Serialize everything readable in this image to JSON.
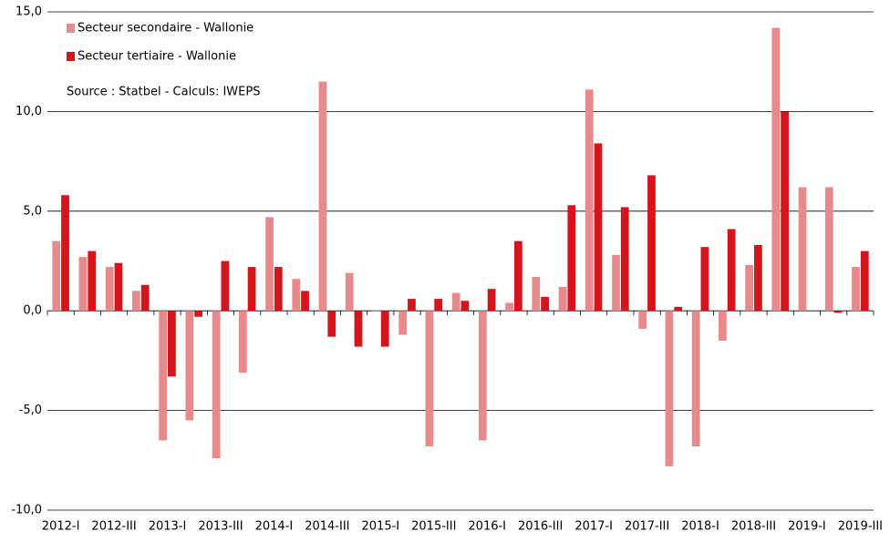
{
  "chart_data": {
    "type": "bar",
    "annotation": "Source : Statbel - Calculs: IWEPS",
    "categories": [
      "2012-I",
      null,
      "2012-III",
      null,
      "2013-I",
      null,
      "2013-III",
      null,
      "2014-I",
      null,
      "2014-III",
      null,
      "2015-I",
      null,
      "2015-III",
      null,
      "2016-I",
      null,
      "2016-III",
      null,
      "2017-I",
      null,
      "2017-III",
      null,
      "2018-I",
      null,
      "2018-III",
      null,
      "2019-I",
      null,
      "2019-III"
    ],
    "series": [
      {
        "name": "Secteur secondaire - Wallonie",
        "color": "#e8898c",
        "values": [
          3.5,
          2.7,
          2.2,
          1.0,
          -6.5,
          -5.5,
          -7.4,
          -3.1,
          4.7,
          1.6,
          11.5,
          1.9,
          0.0,
          -1.2,
          -6.8,
          0.9,
          -6.5,
          0.4,
          1.7,
          1.2,
          11.1,
          2.8,
          -0.9,
          -7.8,
          -6.8,
          -1.5,
          2.3,
          14.2,
          6.2,
          6.2,
          2.2
        ]
      },
      {
        "name": "Secteur tertiaire - Wallonie",
        "color": "#d4151c",
        "values": [
          5.8,
          3.0,
          2.4,
          1.3,
          -3.3,
          -0.3,
          2.5,
          2.2,
          2.2,
          1.0,
          -1.3,
          -1.8,
          -1.8,
          0.6,
          0.6,
          0.5,
          1.1,
          3.5,
          0.7,
          5.3,
          8.4,
          5.2,
          6.8,
          0.2,
          3.2,
          4.1,
          3.3,
          10.0,
          0.0,
          -0.1,
          3.0
        ]
      }
    ],
    "ylim": [
      -10,
      15
    ],
    "yticks": [
      {
        "value": -10,
        "label": "-10,0"
      },
      {
        "value": -5,
        "label": "-5,0"
      },
      {
        "value": 0,
        "label": "0,0"
      },
      {
        "value": 5,
        "label": "5,0"
      },
      {
        "value": 10,
        "label": "10,0"
      },
      {
        "value": 15,
        "label": "15,0"
      }
    ],
    "grid": true,
    "legend": "top-left"
  }
}
